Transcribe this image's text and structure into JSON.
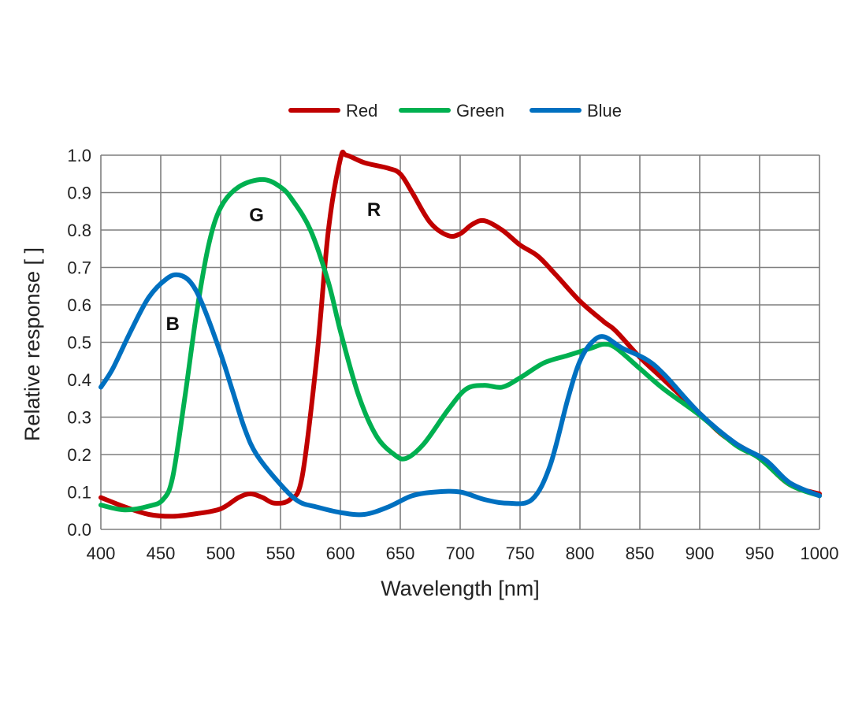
{
  "chart_data": {
    "type": "line",
    "title": "",
    "xlabel": "Wavelength [nm]",
    "ylabel": "Relative response [ ]",
    "xlim": [
      400,
      1000
    ],
    "ylim": [
      0,
      1.0
    ],
    "x_ticks": [
      "400",
      "450",
      "500",
      "550",
      "600",
      "650",
      "700",
      "750",
      "800",
      "850",
      "900",
      "950",
      "1000"
    ],
    "y_ticks": [
      "0.0",
      "0.1",
      "0.2",
      "0.3",
      "0.4",
      "0.5",
      "0.6",
      "0.7",
      "0.8",
      "0.9",
      "1.0"
    ],
    "grid": true,
    "legend_position": "top-center",
    "series": [
      {
        "name": "Red",
        "color": "#c00000",
        "points": [
          [
            400,
            0.085
          ],
          [
            420,
            0.06
          ],
          [
            440,
            0.04
          ],
          [
            460,
            0.035
          ],
          [
            480,
            0.042
          ],
          [
            500,
            0.055
          ],
          [
            515,
            0.085
          ],
          [
            525,
            0.095
          ],
          [
            535,
            0.085
          ],
          [
            545,
            0.07
          ],
          [
            558,
            0.08
          ],
          [
            568,
            0.14
          ],
          [
            580,
            0.45
          ],
          [
            590,
            0.8
          ],
          [
            600,
            0.99
          ],
          [
            605,
            1.0
          ],
          [
            620,
            0.98
          ],
          [
            640,
            0.965
          ],
          [
            650,
            0.95
          ],
          [
            660,
            0.9
          ],
          [
            675,
            0.82
          ],
          [
            690,
            0.785
          ],
          [
            700,
            0.79
          ],
          [
            710,
            0.815
          ],
          [
            720,
            0.825
          ],
          [
            735,
            0.8
          ],
          [
            750,
            0.76
          ],
          [
            765,
            0.73
          ],
          [
            780,
            0.68
          ],
          [
            800,
            0.61
          ],
          [
            820,
            0.555
          ],
          [
            830,
            0.53
          ],
          [
            850,
            0.46
          ],
          [
            870,
            0.4
          ],
          [
            900,
            0.31
          ],
          [
            920,
            0.25
          ],
          [
            950,
            0.19
          ],
          [
            975,
            0.12
          ],
          [
            1000,
            0.095
          ]
        ]
      },
      {
        "name": "Green",
        "color": "#00b050",
        "points": [
          [
            400,
            0.065
          ],
          [
            420,
            0.052
          ],
          [
            440,
            0.062
          ],
          [
            452,
            0.08
          ],
          [
            460,
            0.14
          ],
          [
            470,
            0.35
          ],
          [
            480,
            0.58
          ],
          [
            490,
            0.76
          ],
          [
            500,
            0.86
          ],
          [
            515,
            0.915
          ],
          [
            535,
            0.935
          ],
          [
            550,
            0.915
          ],
          [
            560,
            0.88
          ],
          [
            575,
            0.8
          ],
          [
            590,
            0.66
          ],
          [
            600,
            0.53
          ],
          [
            615,
            0.36
          ],
          [
            630,
            0.25
          ],
          [
            645,
            0.2
          ],
          [
            655,
            0.19
          ],
          [
            670,
            0.23
          ],
          [
            690,
            0.32
          ],
          [
            705,
            0.375
          ],
          [
            720,
            0.385
          ],
          [
            735,
            0.38
          ],
          [
            750,
            0.405
          ],
          [
            770,
            0.445
          ],
          [
            790,
            0.465
          ],
          [
            810,
            0.485
          ],
          [
            820,
            0.495
          ],
          [
            830,
            0.485
          ],
          [
            850,
            0.43
          ],
          [
            870,
            0.375
          ],
          [
            900,
            0.305
          ],
          [
            930,
            0.225
          ],
          [
            950,
            0.19
          ],
          [
            975,
            0.12
          ],
          [
            1000,
            0.09
          ]
        ]
      },
      {
        "name": "Blue",
        "color": "#0070c0",
        "points": [
          [
            400,
            0.38
          ],
          [
            410,
            0.43
          ],
          [
            425,
            0.53
          ],
          [
            440,
            0.62
          ],
          [
            455,
            0.67
          ],
          [
            465,
            0.68
          ],
          [
            475,
            0.66
          ],
          [
            485,
            0.6
          ],
          [
            500,
            0.47
          ],
          [
            510,
            0.37
          ],
          [
            520,
            0.27
          ],
          [
            530,
            0.2
          ],
          [
            550,
            0.12
          ],
          [
            565,
            0.075
          ],
          [
            580,
            0.06
          ],
          [
            600,
            0.045
          ],
          [
            620,
            0.04
          ],
          [
            640,
            0.06
          ],
          [
            660,
            0.09
          ],
          [
            680,
            0.1
          ],
          [
            700,
            0.1
          ],
          [
            720,
            0.08
          ],
          [
            740,
            0.07
          ],
          [
            760,
            0.08
          ],
          [
            775,
            0.17
          ],
          [
            790,
            0.35
          ],
          [
            800,
            0.45
          ],
          [
            810,
            0.5
          ],
          [
            820,
            0.515
          ],
          [
            835,
            0.485
          ],
          [
            855,
            0.455
          ],
          [
            870,
            0.415
          ],
          [
            900,
            0.31
          ],
          [
            930,
            0.23
          ],
          [
            955,
            0.185
          ],
          [
            975,
            0.125
          ],
          [
            1000,
            0.09
          ]
        ]
      }
    ],
    "annotations": [
      {
        "text": "B",
        "x": 460,
        "y": 0.55
      },
      {
        "text": "G",
        "x": 530,
        "y": 0.84
      },
      {
        "text": "R",
        "x": 628,
        "y": 0.855
      }
    ]
  }
}
